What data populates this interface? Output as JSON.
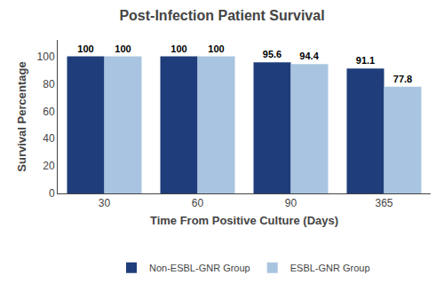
{
  "chart_data": {
    "type": "bar",
    "title": "Post-Infection Patient Survival",
    "xlabel": "Time From Positive Culture (Days)",
    "ylabel": "Survival Percentage",
    "categories": [
      "30",
      "60",
      "90",
      "365"
    ],
    "series": [
      {
        "name": "Non-ESBL-GNR Group",
        "color": "#1F3D7A",
        "values": [
          100,
          100,
          95.6,
          91.1
        ]
      },
      {
        "name": "ESBL-GNR Group",
        "color": "#A8C4E0",
        "values": [
          100,
          100,
          94.4,
          77.8
        ]
      }
    ],
    "ylim": [
      0,
      112
    ],
    "yticks": [
      0,
      20,
      40,
      60,
      80,
      100
    ],
    "grid": false,
    "legend": "bottom",
    "data_labels": true
  }
}
